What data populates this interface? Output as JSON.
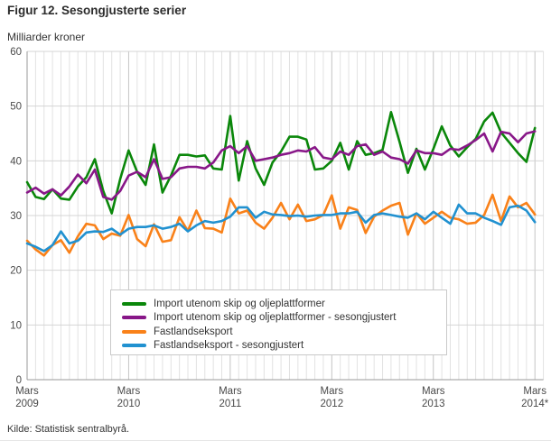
{
  "page": {
    "title": "Figur 12. Sesongjusterte serier",
    "y_axis_unit_label": "Milliarder kroner",
    "source": "Kilde: Statistisk sentralbyrå."
  },
  "chart_data": {
    "type": "line",
    "title": "Figur 12. Sesongjusterte serier",
    "ylabel": "Milliarder kroner",
    "ylim": [
      0,
      60
    ],
    "y_ticks": [
      0,
      10,
      20,
      30,
      40,
      50,
      60
    ],
    "x_unit": "month",
    "months_total": 60,
    "grid": true,
    "legend_position": "inside-bottom-center",
    "x_ticks": [
      {
        "month_index": 0,
        "line1": "Mars",
        "line2": "2009"
      },
      {
        "month_index": 12,
        "line1": "Mars",
        "line2": "2010"
      },
      {
        "month_index": 24,
        "line1": "Mars",
        "line2": "2011"
      },
      {
        "month_index": 36,
        "line1": "Mars",
        "line2": "2012"
      },
      {
        "month_index": 48,
        "line1": "Mars",
        "line2": "2013"
      },
      {
        "month_index": 60,
        "line1": "Mars",
        "line2": "2014*"
      }
    ],
    "series": [
      {
        "name": "Import utenom skip og oljeplattformer",
        "color": "#0a870a",
        "values": [
          36.1,
          33.4,
          33,
          34.8,
          33.1,
          32.9,
          35.3,
          37,
          40.3,
          34.5,
          30.4,
          36.7,
          41.9,
          38,
          35.6,
          43,
          34.2,
          37.3,
          41.1,
          41.1,
          40.8,
          41,
          38.6,
          38.4,
          48.2,
          36.4,
          43.6,
          38.6,
          35.6,
          39.7,
          41.7,
          44.4,
          44.4,
          43.9,
          38.4,
          38.6,
          40,
          43.3,
          38.4,
          43.6,
          41.1,
          41.4,
          42,
          48.9,
          43.5,
          37.8,
          42.2,
          38.4,
          42.2,
          46.3,
          42.8,
          40.8,
          42.5,
          44,
          47.2,
          48.8,
          45.2,
          43.3,
          41.4,
          39.8,
          46
        ]
      },
      {
        "name": "Import utenom skip og oljeplattformer - sesongjustert",
        "color": "#881788",
        "values": [
          34.2,
          35.1,
          34,
          34.8,
          33.7,
          35.3,
          37.5,
          35.9,
          38.4,
          33.4,
          32.9,
          34.5,
          37.3,
          38,
          37,
          40.3,
          36.7,
          37,
          38.6,
          38.9,
          38.9,
          38.6,
          39.7,
          41.9,
          42.7,
          41.4,
          42.7,
          40,
          40.3,
          40.6,
          41.1,
          41.4,
          41.9,
          41.7,
          42.5,
          40.6,
          40.3,
          41.7,
          41.1,
          42.7,
          43,
          41.1,
          41.7,
          40.6,
          40.3,
          39.5,
          41.9,
          41.4,
          41.4,
          41.1,
          42.2,
          42,
          42.8,
          43.8,
          45,
          41.7,
          45.3,
          45,
          43.4,
          45,
          45.4
        ]
      },
      {
        "name": "Fastlandseksport",
        "color": "#f98119",
        "values": [
          25.4,
          23.8,
          22.7,
          24.6,
          25.5,
          23.2,
          26.2,
          28.5,
          28.2,
          25.7,
          26.7,
          26.3,
          30.1,
          25.7,
          24.4,
          28.4,
          25.2,
          25.5,
          29.7,
          27.2,
          30.9,
          27.7,
          27.6,
          26.9,
          33.1,
          30.4,
          30.9,
          28.7,
          27.6,
          29.6,
          32.3,
          29.3,
          32,
          29,
          29.3,
          30.1,
          33.7,
          27.6,
          31.5,
          31,
          26.8,
          29.8,
          30.9,
          31.8,
          32.3,
          26.5,
          30.4,
          28.5,
          29.6,
          30.7,
          29.6,
          29.3,
          28.5,
          28.7,
          30.1,
          33.8,
          29,
          33.5,
          31.5,
          32.3,
          30.2
        ]
      },
      {
        "name": "Fastlandseksport - sesongjustert",
        "color": "#2191d0",
        "values": [
          24.9,
          24.3,
          23.5,
          24.6,
          27.1,
          24.9,
          25.4,
          26.9,
          27.1,
          27,
          27.6,
          26.5,
          27.6,
          27.9,
          27.9,
          28.2,
          27.6,
          27.9,
          28.5,
          27.1,
          28.2,
          29,
          28.7,
          29,
          29.8,
          31.5,
          31.5,
          29.6,
          30.7,
          30.2,
          30.1,
          29.9,
          30,
          29.8,
          30,
          30.1,
          30.1,
          30.4,
          30.4,
          30.7,
          28.7,
          30.1,
          30.4,
          30.1,
          29.8,
          29.6,
          30.4,
          29.3,
          30.7,
          29.6,
          28.5,
          32,
          30.4,
          30.4,
          29.6,
          29,
          28.3,
          31.5,
          31.8,
          30.9,
          28.8
        ]
      }
    ]
  }
}
